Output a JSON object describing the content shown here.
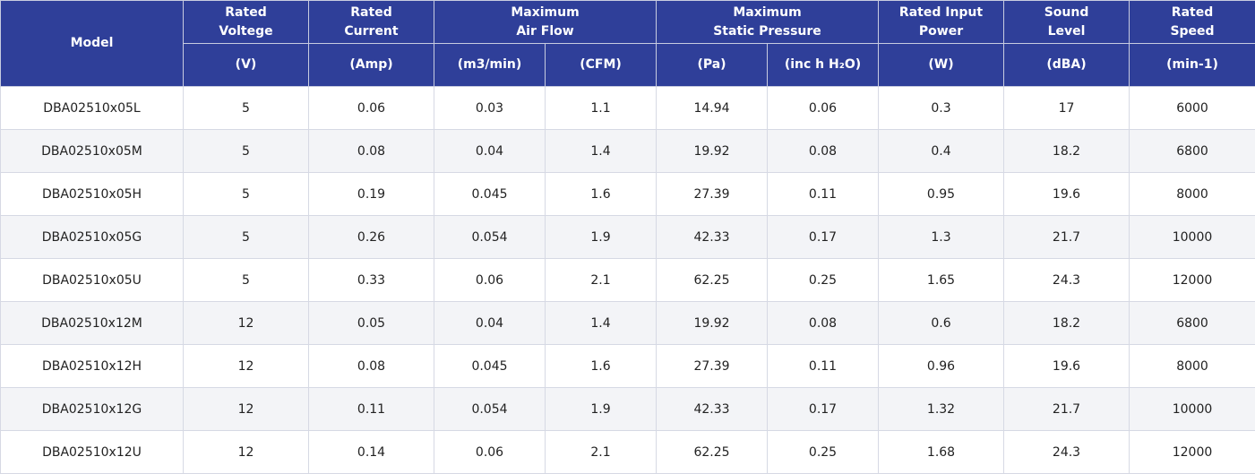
{
  "headers": {
    "model": "Model",
    "groups": [
      {
        "line1": "Rated",
        "line2": "Voltege"
      },
      {
        "line1": "Rated",
        "line2": "Current"
      },
      {
        "line1": "Maximum",
        "line2": "Air Flow"
      },
      {
        "line1": "Maximum",
        "line2": "Static Pressure"
      },
      {
        "line1": "Rated Input",
        "line2": "Power"
      },
      {
        "line1": "Sound",
        "line2": "Level"
      },
      {
        "line1": "Rated",
        "line2": "Speed"
      }
    ],
    "units": [
      "(V)",
      "(Amp)",
      "(m3/min)",
      "(CFM)",
      "(Pa)",
      "(inc h H₂O)",
      "(W)",
      "(dBA)",
      "(min-1)"
    ]
  },
  "rows": [
    [
      "DBA02510x05L",
      "5",
      "0.06",
      "0.03",
      "1.1",
      "14.94",
      "0.06",
      "0.3",
      "17",
      "6000"
    ],
    [
      "DBA02510x05M",
      "5",
      "0.08",
      "0.04",
      "1.4",
      "19.92",
      "0.08",
      "0.4",
      "18.2",
      "6800"
    ],
    [
      "DBA02510x05H",
      "5",
      "0.19",
      "0.045",
      "1.6",
      "27.39",
      "0.11",
      "0.95",
      "19.6",
      "8000"
    ],
    [
      "DBA02510x05G",
      "5",
      "0.26",
      "0.054",
      "1.9",
      "42.33",
      "0.17",
      "1.3",
      "21.7",
      "10000"
    ],
    [
      "DBA02510x05U",
      "5",
      "0.33",
      "0.06",
      "2.1",
      "62.25",
      "0.25",
      "1.65",
      "24.3",
      "12000"
    ],
    [
      "DBA02510x12M",
      "12",
      "0.05",
      "0.04",
      "1.4",
      "19.92",
      "0.08",
      "0.6",
      "18.2",
      "6800"
    ],
    [
      "DBA02510x12H",
      "12",
      "0.08",
      "0.045",
      "1.6",
      "27.39",
      "0.11",
      "0.96",
      "19.6",
      "8000"
    ],
    [
      "DBA02510x12G",
      "12",
      "0.11",
      "0.054",
      "1.9",
      "42.33",
      "0.17",
      "1.32",
      "21.7",
      "10000"
    ],
    [
      "DBA02510x12U",
      "12",
      "0.14",
      "0.06",
      "2.1",
      "62.25",
      "0.25",
      "1.68",
      "24.3",
      "12000"
    ]
  ]
}
